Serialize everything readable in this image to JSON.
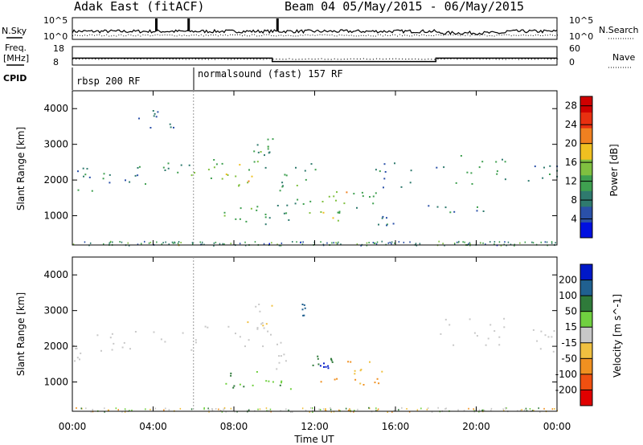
{
  "header": {
    "station": "Adak East (fitACF)",
    "beam_date": "Beam 04 05/May/2015 - 06/May/2015"
  },
  "top_panels": {
    "nsky_label": "N.Sky",
    "nsearch_label": "N.Search",
    "freq_label_1": "Freq.",
    "freq_label_2": "[MHz]",
    "nave_label": "Nave",
    "cpid_label": "CPID",
    "noise_left_ticks": [
      "10^5",
      "10^0"
    ],
    "noise_right_ticks": [
      "10^5",
      "10^0"
    ],
    "freq_ticks": [
      "18",
      "8"
    ],
    "nave_ticks": [
      "60",
      "0"
    ],
    "cpid_modes": [
      {
        "name": "rbsp 200 RF",
        "start_hour": 0,
        "end_hour": 6
      },
      {
        "name": "normalsound (fast) 157 RF",
        "start_hour": 6,
        "end_hour": 24
      }
    ],
    "freq_series": {
      "hours": [
        0,
        9.9,
        9.9,
        18.0,
        18.0,
        24
      ],
      "mhz": [
        12.6,
        12.6,
        10.8,
        10.8,
        12.6,
        12.6
      ]
    }
  },
  "chart_data": [
    {
      "type": "heatmap",
      "panel": "power",
      "ylabel": "Slant Range [km]",
      "y_ticks": [
        1000,
        2000,
        3000,
        4000
      ],
      "ylim": [
        180,
        4500
      ],
      "x_ticks": [
        "00:00",
        "04:00",
        "08:00",
        "12:00",
        "16:00",
        "20:00",
        "00:00"
      ],
      "xlim_hours": [
        0,
        24
      ],
      "colorbar_label": "Power [dB]",
      "colorbar_ticks": [
        4,
        8,
        12,
        16,
        20,
        24,
        28
      ],
      "colorbar_range": [
        0,
        30
      ],
      "colorbar_colors": [
        "#0010e0",
        "#2a50a8",
        "#2f7a6e",
        "#3fa050",
        "#80c040",
        "#f0c020",
        "#f08020",
        "#e83010",
        "#d00000"
      ],
      "echo_regions": [
        {
          "t0": 0.0,
          "t1": 1.5,
          "r0": 1600,
          "r1": 2350,
          "dB": 8
        },
        {
          "t0": 1.5,
          "t1": 4.0,
          "r0": 1900,
          "r1": 2450,
          "dB": 9
        },
        {
          "t0": 4.0,
          "t1": 6.0,
          "r0": 2050,
          "r1": 2500,
          "dB": 10
        },
        {
          "t0": 6.0,
          "t1": 7.5,
          "r0": 2050,
          "r1": 2650,
          "dB": 12
        },
        {
          "t0": 7.5,
          "t1": 9.3,
          "r0": 1850,
          "r1": 2600,
          "dB": 17
        },
        {
          "t0": 8.5,
          "t1": 9.6,
          "r0": 2300,
          "r1": 3050,
          "dB": 12
        },
        {
          "t0": 9.6,
          "t1": 10.0,
          "r0": 2700,
          "r1": 3200,
          "dB": 10
        },
        {
          "t0": 7.5,
          "t1": 9.5,
          "r0": 850,
          "r1": 1350,
          "dB": 11
        },
        {
          "t0": 9.5,
          "t1": 10.8,
          "r0": 750,
          "r1": 1150,
          "dB": 10
        },
        {
          "t0": 10.0,
          "t1": 10.7,
          "r0": 1300,
          "r1": 2200,
          "dB": 10
        },
        {
          "t0": 11.0,
          "t1": 12.2,
          "r0": 1050,
          "r1": 2500,
          "dB": 10
        },
        {
          "t0": 12.2,
          "t1": 13.6,
          "r0": 1350,
          "r1": 1750,
          "dB": 17
        },
        {
          "t0": 12.2,
          "t1": 13.7,
          "r0": 850,
          "r1": 1150,
          "dB": 15
        },
        {
          "t0": 13.6,
          "t1": 15.3,
          "r0": 1200,
          "r1": 1700,
          "dB": 10
        },
        {
          "t0": 15.0,
          "t1": 17.0,
          "r0": 1800,
          "r1": 2500,
          "dB": 7
        },
        {
          "t0": 18.0,
          "t1": 21.6,
          "r0": 1900,
          "r1": 2800,
          "dB": 8
        },
        {
          "t0": 17.5,
          "t1": 20.5,
          "r0": 1100,
          "r1": 1400,
          "dB": 7
        },
        {
          "t0": 22.5,
          "t1": 24.0,
          "r0": 1850,
          "r1": 2500,
          "dB": 8
        },
        {
          "t0": 3.2,
          "t1": 5.2,
          "r0": 3400,
          "r1": 4100,
          "dB": 6
        },
        {
          "t0": 15.0,
          "t1": 16.2,
          "r0": 600,
          "r1": 1000,
          "dB": 6
        }
      ]
    },
    {
      "type": "heatmap",
      "panel": "velocity",
      "ylabel": "Slant Range [km]",
      "y_ticks": [
        1000,
        2000,
        3000,
        4000
      ],
      "ylim": [
        180,
        4500
      ],
      "x_ticks": [
        "00:00",
        "04:00",
        "08:00",
        "12:00",
        "16:00",
        "20:00",
        "00:00"
      ],
      "xlim_hours": [
        0,
        24
      ],
      "xlabel": "Time UT",
      "colorbar_label": "Velocity [m s^-1]",
      "colorbar_ticks": [
        200,
        100,
        50,
        15,
        -15,
        -50,
        -100,
        -200
      ],
      "colorbar_colors": [
        "#0018c8",
        "#206090",
        "#2f7a3a",
        "#70d040",
        "#c8c8c8",
        "#f0c040",
        "#f09020",
        "#f05010",
        "#e00000"
      ],
      "echo_regions": [
        {
          "t0": 0.0,
          "t1": 1.5,
          "r0": 1600,
          "r1": 2350,
          "v": 0
        },
        {
          "t0": 1.5,
          "t1": 6.0,
          "r0": 1900,
          "r1": 2500,
          "v": 0
        },
        {
          "t0": 6.0,
          "t1": 10.0,
          "r0": 1850,
          "r1": 2700,
          "v": 0
        },
        {
          "t0": 8.5,
          "t1": 10.0,
          "r0": 2400,
          "r1": 3200,
          "v": -20
        },
        {
          "t0": 7.5,
          "t1": 9.5,
          "r0": 850,
          "r1": 1350,
          "v": 30
        },
        {
          "t0": 9.5,
          "t1": 10.8,
          "r0": 750,
          "r1": 1150,
          "v": 30
        },
        {
          "t0": 10.0,
          "t1": 10.7,
          "r0": 1300,
          "r1": 2200,
          "v": 0
        },
        {
          "t0": 11.8,
          "t1": 13.6,
          "r0": 1350,
          "r1": 1750,
          "v": 60
        },
        {
          "t0": 12.0,
          "t1": 12.9,
          "r0": 1400,
          "r1": 1550,
          "v": 200
        },
        {
          "t0": 12.2,
          "t1": 15.5,
          "r0": 900,
          "r1": 1200,
          "v": -40
        },
        {
          "t0": 13.6,
          "t1": 15.3,
          "r0": 1200,
          "r1": 1700,
          "v": -30
        },
        {
          "t0": 18.0,
          "t1": 21.6,
          "r0": 1900,
          "r1": 2800,
          "v": 0
        },
        {
          "t0": 22.5,
          "t1": 24.0,
          "r0": 1850,
          "r1": 2500,
          "v": 0
        },
        {
          "t0": 11.3,
          "t1": 11.5,
          "r0": 2800,
          "r1": 3200,
          "v": 150
        }
      ]
    }
  ]
}
